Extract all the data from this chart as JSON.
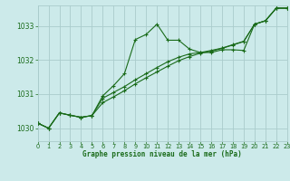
{
  "title": "Graphe pression niveau de la mer (hPa)",
  "bg_color": "#cceaea",
  "grid_color": "#aacccc",
  "line_color": "#1a6b1a",
  "yticks": [
    1030,
    1031,
    1032,
    1033
  ],
  "xticks": [
    0,
    1,
    2,
    3,
    4,
    5,
    6,
    7,
    8,
    9,
    10,
    11,
    12,
    13,
    14,
    15,
    16,
    17,
    18,
    19,
    20,
    21,
    22,
    23
  ],
  "xlim": [
    0,
    23
  ],
  "ylim": [
    1029.62,
    1033.6
  ],
  "series1": [
    1030.15,
    1030.0,
    1030.45,
    1030.38,
    1030.32,
    1030.37,
    1030.95,
    1031.25,
    1031.6,
    1032.6,
    1032.75,
    1033.05,
    1032.58,
    1032.58,
    1032.32,
    1032.22,
    1032.22,
    1032.3,
    1032.3,
    1032.28,
    1033.05,
    1033.15,
    1033.52,
    1033.52
  ],
  "series2": [
    1030.15,
    1030.0,
    1030.45,
    1030.38,
    1030.32,
    1030.37,
    1030.88,
    1031.05,
    1031.22,
    1031.42,
    1031.6,
    1031.78,
    1031.95,
    1032.08,
    1032.18,
    1032.22,
    1032.28,
    1032.35,
    1032.45,
    1032.55,
    1033.05,
    1033.15,
    1033.52,
    1033.52
  ],
  "series3": [
    1030.15,
    1030.0,
    1030.45,
    1030.38,
    1030.32,
    1030.37,
    1030.75,
    1030.92,
    1031.1,
    1031.3,
    1031.48,
    1031.65,
    1031.82,
    1031.98,
    1032.1,
    1032.2,
    1032.26,
    1032.34,
    1032.44,
    1032.54,
    1033.05,
    1033.15,
    1033.52,
    1033.52
  ]
}
